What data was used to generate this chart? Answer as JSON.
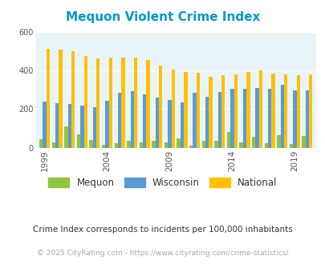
{
  "title": "Mequon Violent Crime Index",
  "title_color": "#0099cc",
  "subtitle": "Crime Index corresponds to incidents per 100,000 inhabitants",
  "footer": "© 2025 CityRating.com - https://www.cityrating.com/crime-statistics/",
  "years": [
    1999,
    2000,
    2001,
    2002,
    2003,
    2004,
    2005,
    2006,
    2007,
    2008,
    2009,
    2010,
    2011,
    2012,
    2013,
    2014,
    2015,
    2016,
    2017,
    2018,
    2019,
    2020
  ],
  "mequon": [
    45,
    30,
    110,
    70,
    40,
    15,
    25,
    38,
    30,
    35,
    30,
    50,
    10,
    38,
    35,
    80,
    30,
    55,
    25,
    65,
    20,
    60
  ],
  "wisconsin": [
    238,
    232,
    226,
    220,
    210,
    245,
    285,
    292,
    275,
    260,
    248,
    235,
    285,
    265,
    290,
    305,
    307,
    310,
    303,
    325,
    298,
    295
  ],
  "national": [
    510,
    507,
    500,
    473,
    463,
    465,
    468,
    465,
    455,
    425,
    403,
    390,
    388,
    365,
    375,
    380,
    390,
    398,
    383,
    380,
    375,
    380
  ],
  "mequon_color": "#8dc63f",
  "wisconsin_color": "#5b9bd5",
  "national_color": "#ffc000",
  "bg_color": "#e8f4f8",
  "ylim": [
    0,
    600
  ],
  "yticks": [
    0,
    200,
    400,
    600
  ],
  "bar_width": 0.28,
  "tick_years": [
    1999,
    2004,
    2009,
    2014,
    2019
  ],
  "legend_labels": [
    "Mequon",
    "Wisconsin",
    "National"
  ],
  "subtitle_color": "#333333",
  "footer_color": "#aaaaaa"
}
